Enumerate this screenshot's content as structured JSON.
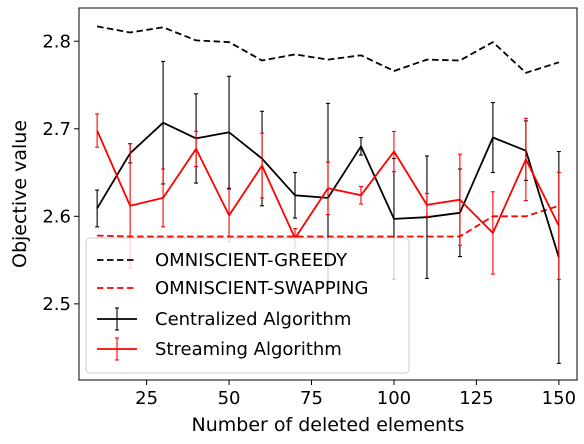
{
  "chart_data": {
    "type": "line",
    "title": "",
    "xlabel": "Number of deleted elements",
    "ylabel": "Objective value",
    "xlim": [
      4.5,
      155.5
    ],
    "ylim": [
      2.413,
      2.838
    ],
    "xticks": [
      25,
      50,
      75,
      100,
      125,
      150
    ],
    "yticks": [
      2.5,
      2.6,
      2.7,
      2.8
    ],
    "grid": false,
    "legend_position": "lower-left",
    "x": [
      10,
      20,
      30,
      40,
      50,
      60,
      70,
      80,
      90,
      100,
      110,
      120,
      130,
      140,
      150
    ],
    "series": [
      {
        "name": "OMNISCIENT-GREEDY",
        "style": "dashed",
        "color": "#000000",
        "values": [
          2.817,
          2.81,
          2.816,
          2.801,
          2.799,
          2.778,
          2.785,
          2.779,
          2.784,
          2.766,
          2.779,
          2.778,
          2.799,
          2.764,
          2.776
        ]
      },
      {
        "name": "OMNISCIENT-SWAPPING",
        "style": "dashed",
        "color": "#ff0000",
        "values": [
          2.578,
          2.577,
          2.577,
          2.577,
          2.577,
          2.577,
          2.577,
          2.577,
          2.577,
          2.577,
          2.577,
          2.577,
          2.6,
          2.6,
          2.612
        ]
      },
      {
        "name": "Centralized Algorithm",
        "style": "solid",
        "color": "#000000",
        "values": [
          2.609,
          2.672,
          2.707,
          2.689,
          2.696,
          2.666,
          2.624,
          2.621,
          2.68,
          2.597,
          2.599,
          2.604,
          2.69,
          2.675,
          2.553
        ],
        "errors": [
          0.021,
          0.011,
          0.07,
          0.051,
          0.064,
          0.054,
          0.026,
          0.108,
          0.01,
          0.069,
          0.07,
          0.05,
          0.04,
          0.034,
          0.121
        ]
      },
      {
        "name": "Streaming Algorithm",
        "style": "solid",
        "color": "#ff0000",
        "values": [
          2.698,
          2.612,
          2.621,
          2.677,
          2.601,
          2.658,
          2.575,
          2.632,
          2.624,
          2.674,
          2.613,
          2.619,
          2.581,
          2.665,
          2.589
        ],
        "errors": [
          0.019,
          0.071,
          0.033,
          0.02,
          0.03,
          0.037,
          0.011,
          0.03,
          0.01,
          0.023,
          0.013,
          0.052,
          0.047,
          0.047,
          0.061
        ]
      }
    ]
  }
}
